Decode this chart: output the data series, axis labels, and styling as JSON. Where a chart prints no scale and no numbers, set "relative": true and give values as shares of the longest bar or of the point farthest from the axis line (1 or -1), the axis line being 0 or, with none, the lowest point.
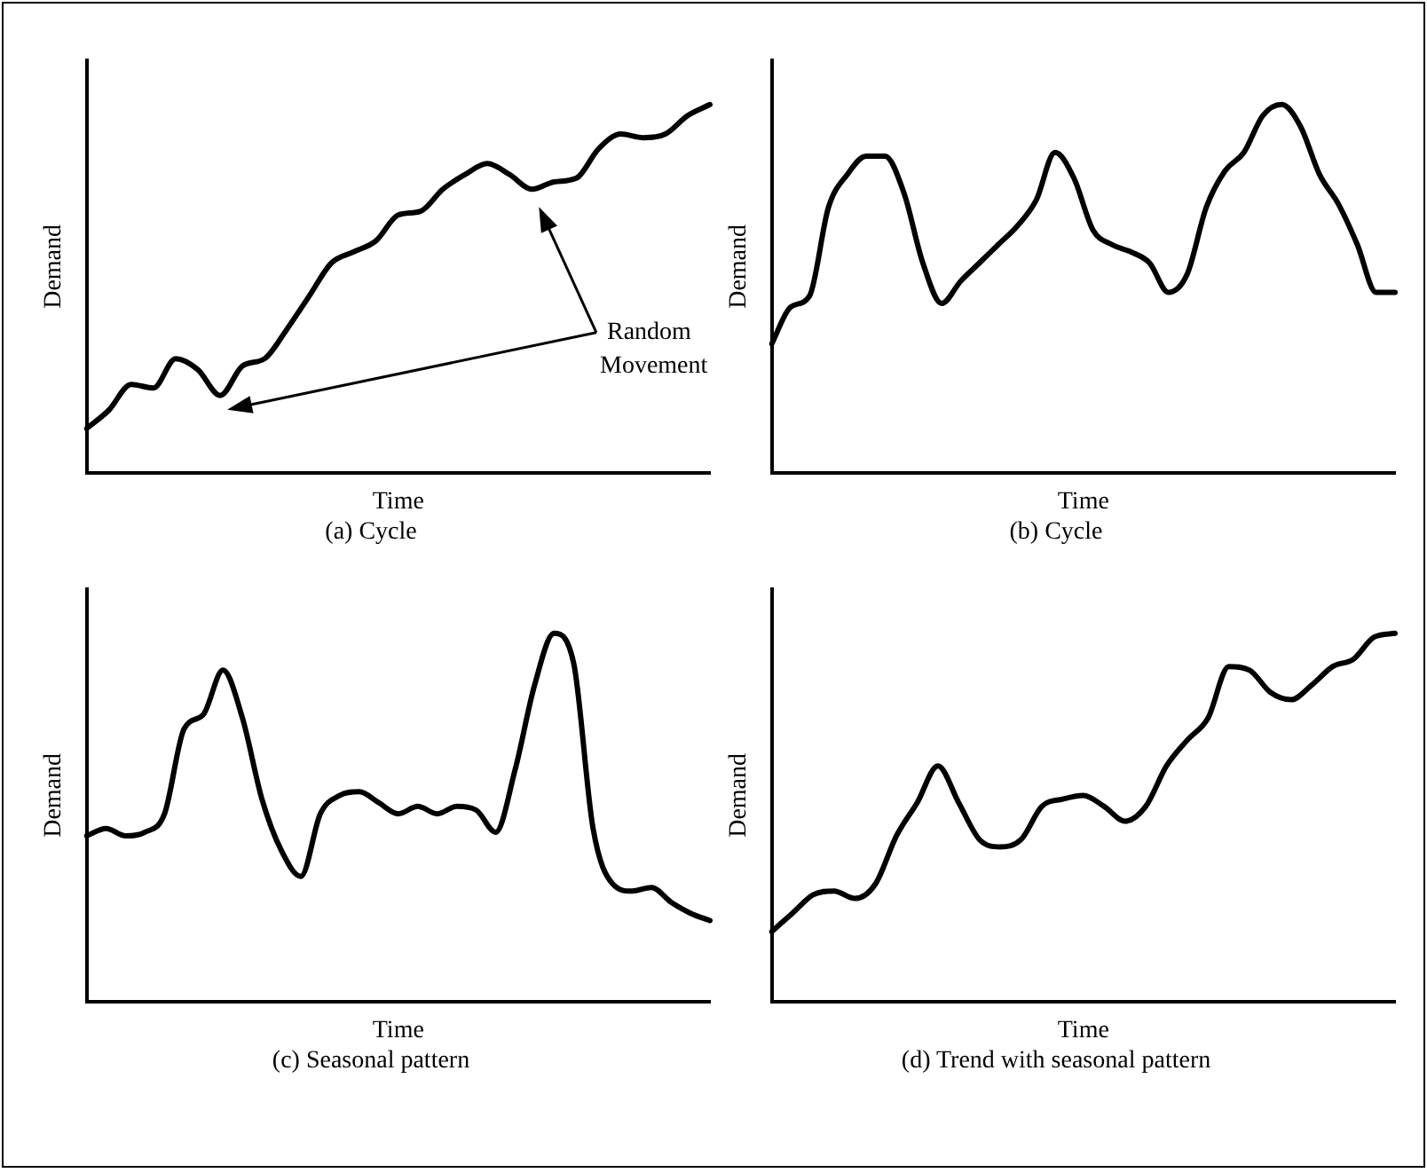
{
  "chart_data": [
    {
      "type": "line",
      "title": "(a) Cycle",
      "xlabel": "Time",
      "ylabel": "Demand",
      "relative": true,
      "marker": "none",
      "legend": false,
      "annotations": [
        "Random Movement"
      ],
      "categories": [
        null,
        null,
        null,
        null,
        null,
        null,
        null,
        null,
        null,
        null,
        null,
        null,
        null,
        null,
        null,
        null,
        null,
        null,
        null,
        null,
        null,
        null,
        null,
        null,
        null,
        null,
        null,
        null,
        null
      ],
      "series": [
        {
          "color": "#000000",
          "values": [
            0.12,
            0.17,
            0.24,
            0.23,
            0.31,
            0.28,
            0.21,
            0.29,
            0.31,
            0.39,
            0.48,
            0.57,
            0.6,
            0.63,
            0.7,
            0.71,
            0.77,
            0.81,
            0.84,
            0.81,
            0.77,
            0.79,
            0.8,
            0.88,
            0.92,
            0.91,
            0.92,
            0.97,
            1
          ]
        }
      ]
    },
    {
      "type": "line",
      "title": "(b) Cycle",
      "xlabel": "Time",
      "ylabel": "Demand",
      "relative": true,
      "marker": "none",
      "legend": false,
      "categories": [
        null,
        null,
        null,
        null,
        null,
        null,
        null,
        null,
        null,
        null,
        null,
        null,
        null,
        null,
        null,
        null,
        null,
        null,
        null,
        null,
        null,
        null,
        null,
        null,
        null,
        null,
        null,
        null,
        null,
        null,
        null,
        null,
        null,
        null
      ],
      "series": [
        {
          "color": "#000000",
          "values": [
            0.35,
            0.45,
            0.48,
            0.72,
            0.81,
            0.86,
            0.86,
            0.76,
            0.57,
            0.46,
            0.52,
            0.57,
            0.62,
            0.67,
            0.74,
            0.87,
            0.8,
            0.66,
            0.62,
            0.6,
            0.57,
            0.49,
            0.54,
            0.72,
            0.82,
            0.87,
            0.97,
            1,
            0.94,
            0.81,
            0.73,
            0.62,
            0.49,
            0.49
          ]
        }
      ]
    },
    {
      "type": "line",
      "title": "(c) Seasonal pattern",
      "xlabel": "Time",
      "ylabel": "Demand",
      "relative": true,
      "marker": "none",
      "legend": false,
      "categories": [
        null,
        null,
        null,
        null,
        null,
        null,
        null,
        null,
        null,
        null,
        null,
        null,
        null,
        null,
        null,
        null,
        null,
        null,
        null,
        null,
        null,
        null,
        null,
        null,
        null,
        null,
        null,
        null,
        null,
        null,
        null,
        null,
        null
      ],
      "series": [
        {
          "color": "#000000",
          "values": [
            0.45,
            0.47,
            0.45,
            0.46,
            0.51,
            0.74,
            0.78,
            0.9,
            0.77,
            0.55,
            0.41,
            0.34,
            0.51,
            0.56,
            0.57,
            0.54,
            0.51,
            0.53,
            0.51,
            0.53,
            0.52,
            0.46,
            0.63,
            0.86,
            1,
            0.92,
            0.47,
            0.32,
            0.3,
            0.31,
            0.27,
            0.24,
            0.22
          ]
        }
      ]
    },
    {
      "type": "line",
      "title": "(d) Trend with seasonal pattern",
      "xlabel": "Time",
      "ylabel": "Demand",
      "relative": true,
      "marker": "none",
      "legend": false,
      "categories": [
        null,
        null,
        null,
        null,
        null,
        null,
        null,
        null,
        null,
        null,
        null,
        null,
        null,
        null,
        null,
        null,
        null,
        null,
        null,
        null,
        null,
        null,
        null,
        null,
        null,
        null,
        null,
        null,
        null,
        null,
        null
      ],
      "series": [
        {
          "color": "#000000",
          "values": [
            0.19,
            0.24,
            0.29,
            0.3,
            0.28,
            0.32,
            0.45,
            0.54,
            0.64,
            0.54,
            0.44,
            0.42,
            0.44,
            0.53,
            0.55,
            0.56,
            0.53,
            0.49,
            0.53,
            0.64,
            0.71,
            0.77,
            0.91,
            0.9,
            0.84,
            0.82,
            0.86,
            0.91,
            0.93,
            0.99,
            1
          ]
        }
      ]
    }
  ]
}
